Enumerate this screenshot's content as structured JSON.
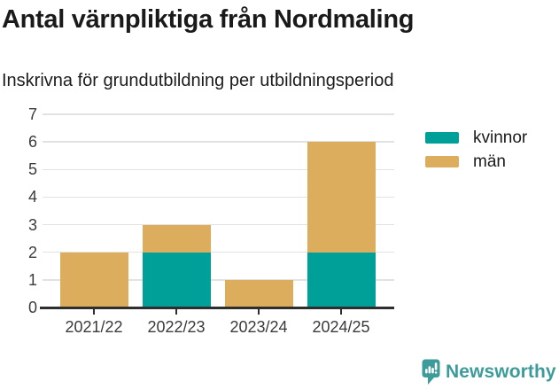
{
  "title": "Antal värnpliktiga från Nordmaling",
  "subtitle": "Inskrivna för grundutbildning per utbildningsperiod",
  "chart_data": {
    "type": "bar",
    "stacked": true,
    "title": "Antal värnpliktiga från Nordmaling",
    "subtitle": "Inskrivna för grundutbildning per utbildningsperiod",
    "categories": [
      "2021/22",
      "2022/23",
      "2023/24",
      "2024/25"
    ],
    "series": [
      {
        "name": "kvinnor",
        "color": "#00a099",
        "values": [
          0,
          2,
          0,
          2
        ]
      },
      {
        "name": "män",
        "color": "#dcad5c",
        "values": [
          2,
          1,
          1,
          4
        ]
      }
    ],
    "totals": [
      2,
      3,
      1,
      6
    ],
    "xlabel": "",
    "ylabel": "",
    "ylim": [
      0,
      7
    ],
    "yticks": [
      0,
      1,
      2,
      3,
      4,
      5,
      6,
      7
    ],
    "grid": true,
    "legend_position": "top-right"
  },
  "legend": {
    "items": [
      {
        "label": "kvinnor",
        "color": "#00a099"
      },
      {
        "label": "män",
        "color": "#dcad5c"
      }
    ]
  },
  "footer": {
    "brand": "Newsworthy",
    "logo_icon": "bar-chart-speech-bubble-icon",
    "brand_color": "#3d9b99"
  },
  "colors": {
    "grid": "#e2e2e2",
    "axis": "#2e2e2e",
    "tick_label": "#3b3b3b",
    "text": "#1a1a1a",
    "background": "#ffffff"
  }
}
